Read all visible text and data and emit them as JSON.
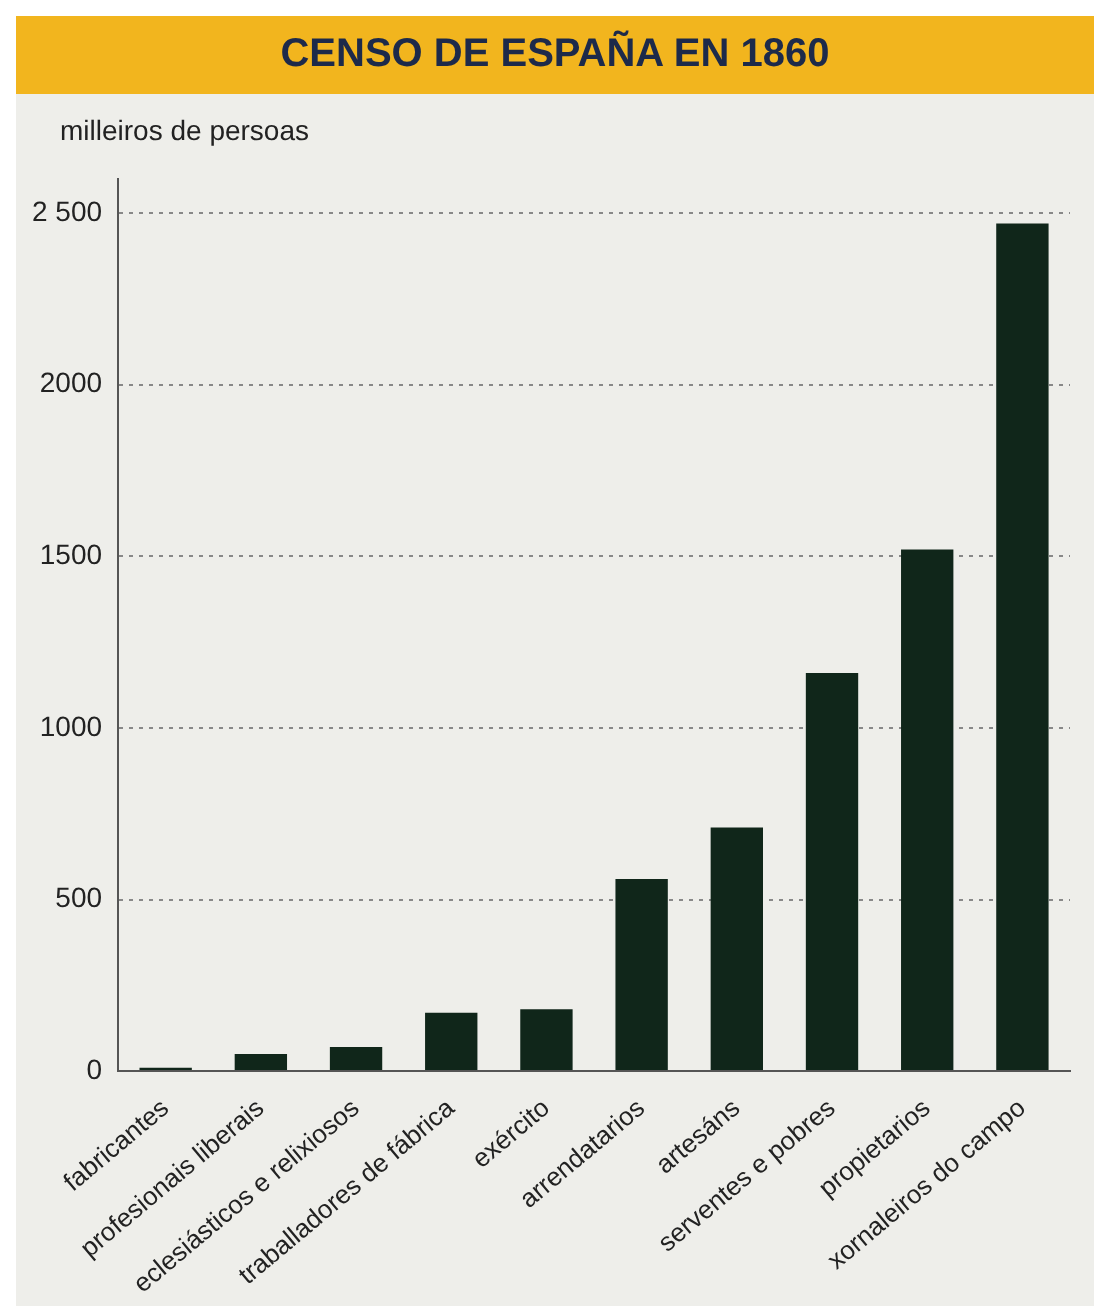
{
  "chart_data": {
    "type": "bar",
    "title": "CENSO DE ESPAÑA EN 1860",
    "ylabel": "milleiros de persoas",
    "categories": [
      "fabricantes",
      "profesionais liberais",
      "eclesiásticos e relixiosos",
      "traballadores de fábrica",
      "exército",
      "arrendatarios",
      "artesáns",
      "serventes e pobres",
      "propietarios",
      "xornaleiros do campo"
    ],
    "values": [
      10,
      50,
      70,
      170,
      180,
      560,
      710,
      1160,
      1520,
      2470
    ],
    "color": "#10261a",
    "ylim": [
      0,
      2600
    ],
    "yticks": [
      0,
      500,
      1000,
      1500,
      2000,
      {
        "value": 2500,
        "label": "2 500"
      }
    ],
    "grid": "y"
  }
}
